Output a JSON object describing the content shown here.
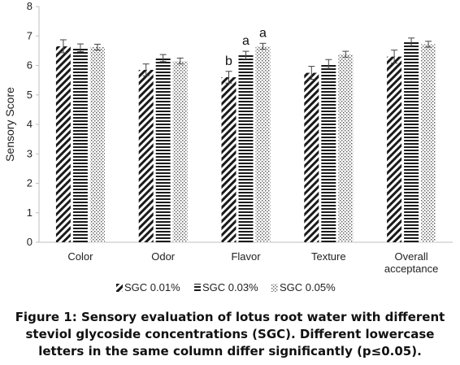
{
  "chart_data": {
    "type": "bar",
    "ylabel": "Sensory Score",
    "xlabel": "",
    "ylim": [
      0,
      8
    ],
    "yticks": [
      0,
      1,
      2,
      3,
      4,
      5,
      6,
      7,
      8
    ],
    "categories": [
      "Color",
      "Odor",
      "Flavor",
      "Texture",
      "Overall acceptance"
    ],
    "category_labels": [
      [
        "Color"
      ],
      [
        "Odor"
      ],
      [
        "Flavor"
      ],
      [
        "Texture"
      ],
      [
        "Overall",
        "acceptance"
      ]
    ],
    "series": [
      {
        "name": "SGC 0.01%",
        "pattern": "diagonal",
        "values": [
          6.65,
          5.85,
          5.6,
          5.75,
          6.3
        ],
        "errors": [
          0.22,
          0.2,
          0.2,
          0.22,
          0.22
        ],
        "letters": [
          "",
          "",
          "b",
          "",
          ""
        ]
      },
      {
        "name": "SGC 0.03%",
        "pattern": "horizontal",
        "values": [
          6.6,
          6.25,
          6.35,
          6.05,
          6.8
        ],
        "errors": [
          0.13,
          0.12,
          0.13,
          0.15,
          0.13
        ],
        "letters": [
          "",
          "",
          "a",
          "",
          ""
        ]
      },
      {
        "name": "SGC 0.05%",
        "pattern": "dots",
        "values": [
          6.62,
          6.15,
          6.65,
          6.38,
          6.72
        ],
        "errors": [
          0.1,
          0.1,
          0.1,
          0.1,
          0.1
        ],
        "letters": [
          "",
          "",
          "a",
          "",
          ""
        ]
      }
    ],
    "legend_position": "bottom",
    "grid": false,
    "axis_color": "#bfbfbf",
    "bar_color": "#1a1a1a"
  },
  "caption": {
    "line1": "Figure 1: Sensory evaluation of lotus root water with different",
    "line2": "steviol glycoside concentrations (SGC). Different lowercase",
    "line3": "letters in the same column differ significantly (p≤0.05)."
  }
}
